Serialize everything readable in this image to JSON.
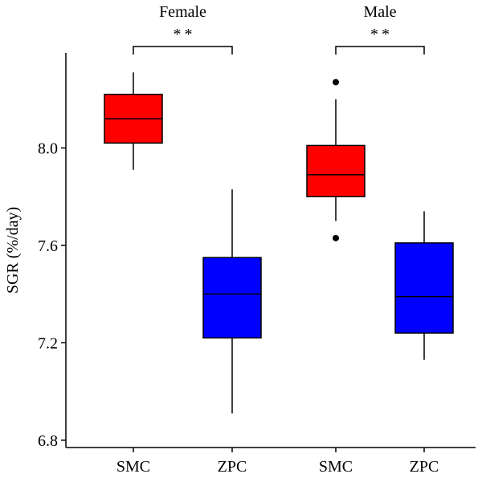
{
  "chart_data": {
    "type": "box",
    "title": "",
    "ylabel": "SGR (%/day)",
    "xlabel": "",
    "ylim": [
      6.77,
      8.39
    ],
    "yticks": [
      6.8,
      7.2,
      7.6,
      8.0
    ],
    "ytick_labels": [
      "6.8",
      "7.2",
      "7.6",
      "8.0"
    ],
    "categories": [
      "SMC",
      "ZPC",
      "SMC",
      "ZPC"
    ],
    "groups": [
      {
        "label": "Female",
        "significance": "**",
        "boxes": [
          {
            "category": "SMC",
            "color": "#ff0000",
            "whisker_low": 7.91,
            "q1": 8.02,
            "median": 8.12,
            "q3": 8.22,
            "whisker_high": 8.31,
            "outliers": []
          },
          {
            "category": "ZPC",
            "color": "#0000ff",
            "whisker_low": 6.91,
            "q1": 7.22,
            "median": 7.4,
            "q3": 7.55,
            "whisker_high": 7.83,
            "outliers": []
          }
        ]
      },
      {
        "label": "Male",
        "significance": "**",
        "boxes": [
          {
            "category": "SMC",
            "color": "#ff0000",
            "whisker_low": 7.7,
            "q1": 7.8,
            "median": 7.89,
            "q3": 8.01,
            "whisker_high": 8.2,
            "outliers": [
              8.27,
              7.63
            ]
          },
          {
            "category": "ZPC",
            "color": "#0000ff",
            "whisker_low": 7.13,
            "q1": 7.24,
            "median": 7.39,
            "q3": 7.61,
            "whisker_high": 7.74,
            "outliers": []
          }
        ]
      }
    ]
  }
}
